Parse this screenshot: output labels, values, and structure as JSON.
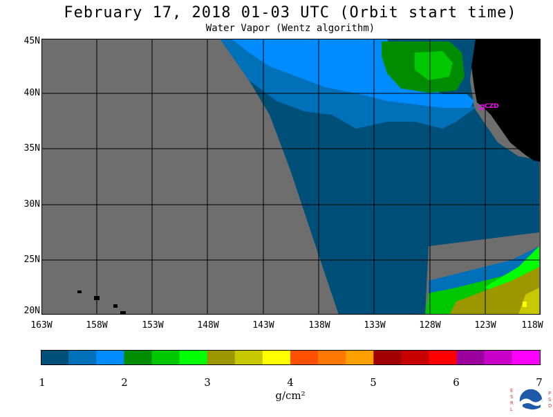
{
  "header": {
    "title": "February 17, 2018  01-03 UTC  (Orbit start time)",
    "subtitle": "Water Vapor (Wentz algorithm)"
  },
  "map": {
    "lat_labels": [
      "45N",
      "40N",
      "35N",
      "30N",
      "25N",
      "20N"
    ],
    "lon_labels": [
      "163W",
      "158W",
      "153W",
      "148W",
      "143W",
      "138W",
      "133W",
      "128W",
      "123W",
      "118W"
    ],
    "station_label": "CZD",
    "lat_range": [
      20,
      45
    ],
    "lon_range": [
      -163,
      -118
    ],
    "colors": {
      "no_data": "#6e6e6e",
      "land": "#000000",
      "station": "#ff00ff",
      "grid": "#000000"
    }
  },
  "colorbar": {
    "tick_labels": [
      "1",
      "2",
      "3",
      "4",
      "5",
      "6",
      "7"
    ],
    "units": "g/cm²",
    "colors": [
      "#004f78",
      "#0070b8",
      "#008cff",
      "#008c00",
      "#00c800",
      "#00ff00",
      "#9c9600",
      "#c8c800",
      "#ffff00",
      "#ff5000",
      "#ff7800",
      "#ffa000",
      "#a00000",
      "#c80000",
      "#ff0000",
      "#9c009c",
      "#c800c8",
      "#ff00ff"
    ]
  },
  "logo": {
    "name": "noaa-logo",
    "left_letters": [
      "E",
      "S",
      "R",
      "L"
    ],
    "right_letters": [
      "P",
      "S",
      "D"
    ]
  }
}
